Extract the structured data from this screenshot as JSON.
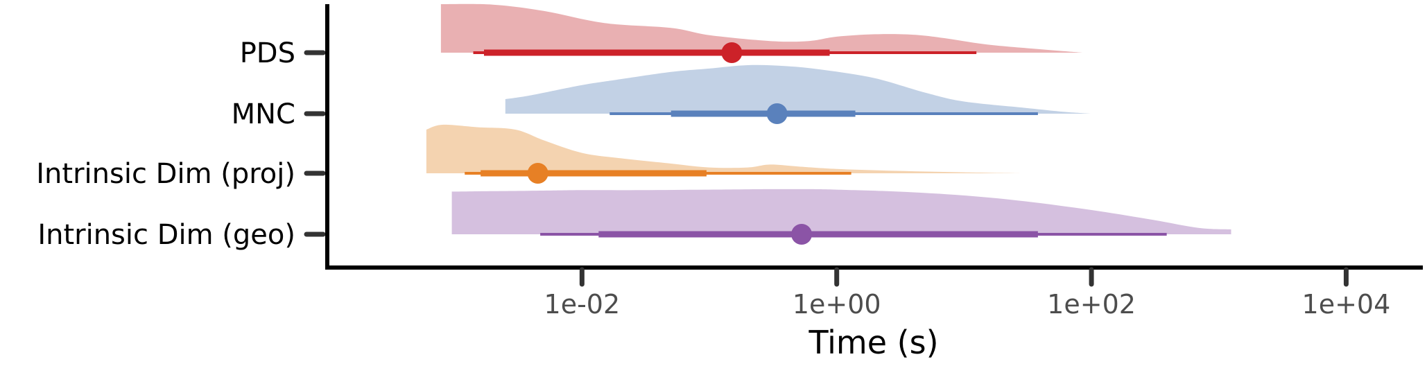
{
  "chart_data": {
    "type": "halfeye",
    "xlabel": "Time (s)",
    "ylabel": "",
    "x_scale": "log10",
    "xlim": [
      0.0001,
      40000.0
    ],
    "x_ticks": [
      0.01,
      1,
      100,
      10000
    ],
    "x_tick_labels": [
      "1e-02",
      "1e+00",
      "1e+02",
      "1e+04"
    ],
    "grid": false,
    "legend": "none",
    "series": [
      {
        "name": "PDS",
        "color": "#cc2229",
        "fill": "#e9b0b2",
        "median": 0.15,
        "interval_66": [
          0.0017,
          0.88
        ],
        "interval_95": [
          0.0014,
          12.5
        ],
        "density": {
          "x": [
            0.00078,
            0.002,
            0.005,
            0.015,
            0.05,
            0.1,
            0.3,
            0.6,
            1,
            2,
            4,
            7,
            15,
            40,
            85
          ],
          "y": [
            1.0,
            0.99,
            0.86,
            0.61,
            0.51,
            0.36,
            0.24,
            0.24,
            0.33,
            0.38,
            0.37,
            0.3,
            0.17,
            0.07,
            0.0
          ]
        }
      },
      {
        "name": "MNC",
        "color": "#5a81bc",
        "fill": "#c2d1e5",
        "median": 0.34,
        "interval_66": [
          0.05,
          1.4
        ],
        "interval_95": [
          0.0165,
          38
        ],
        "density": {
          "x": [
            0.0025,
            0.004,
            0.01,
            0.02,
            0.05,
            0.1,
            0.2,
            0.4,
            0.8,
            2,
            5,
            10,
            30,
            60,
            100
          ],
          "y": [
            0.3,
            0.38,
            0.59,
            0.71,
            0.86,
            0.93,
            1.0,
            0.98,
            0.9,
            0.73,
            0.43,
            0.25,
            0.12,
            0.04,
            0.0
          ]
        }
      },
      {
        "name": "Intrinsic Dim (proj)",
        "color": "#e78025",
        "fill": "#f4d3b0",
        "median": 0.0045,
        "interval_66": [
          0.0016,
          0.095
        ],
        "interval_95": [
          0.0012,
          1.3
        ],
        "density": {
          "x": [
            0.0006,
            0.0008,
            0.0015,
            0.003,
            0.005,
            0.01,
            0.02,
            0.05,
            0.1,
            0.2,
            0.3,
            0.5,
            1,
            3,
            10,
            30
          ],
          "y": [
            0.9,
            1.0,
            0.95,
            0.9,
            0.68,
            0.42,
            0.31,
            0.2,
            0.12,
            0.12,
            0.18,
            0.14,
            0.09,
            0.05,
            0.02,
            0.0
          ]
        }
      },
      {
        "name": "Intrinsic Dim (geo)",
        "color": "#8b54a6",
        "fill": "#d5c0df",
        "median": 0.53,
        "interval_66": [
          0.0135,
          38
        ],
        "interval_95": [
          0.0047,
          390
        ],
        "density": {
          "x": [
            0.00095,
            0.002,
            0.005,
            0.01,
            0.03,
            0.1,
            0.3,
            0.6,
            1,
            3,
            10,
            30,
            100,
            300,
            700,
            1250
          ],
          "y": [
            0.88,
            0.89,
            0.9,
            0.91,
            0.91,
            0.92,
            0.93,
            0.93,
            0.92,
            0.88,
            0.8,
            0.68,
            0.5,
            0.3,
            0.13,
            0.1
          ]
        }
      }
    ]
  }
}
